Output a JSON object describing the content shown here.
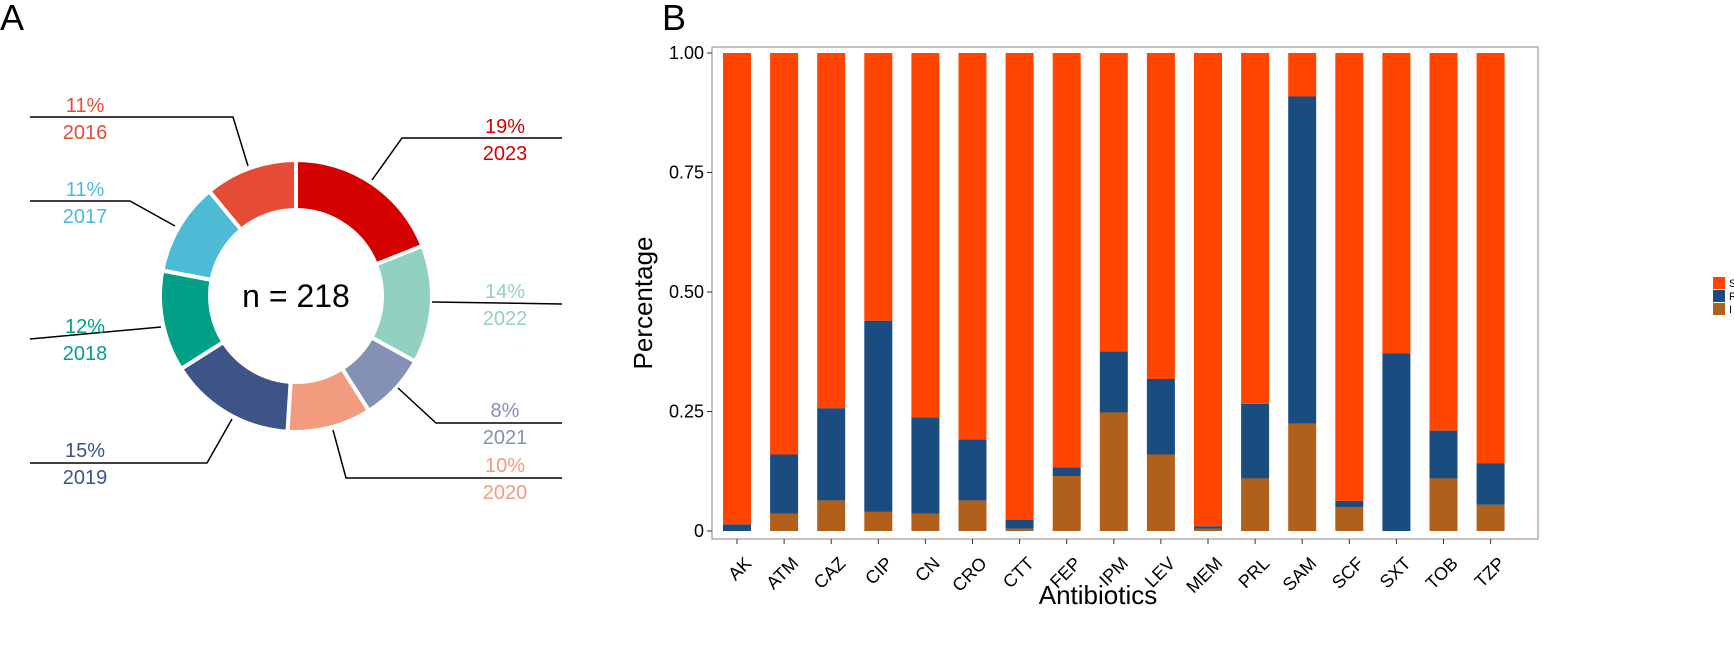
{
  "panels": {
    "a_label": "A",
    "b_label": "B"
  },
  "chart_data": [
    {
      "type": "pie",
      "subtype": "donut",
      "center_text": "n = 218",
      "slices": [
        {
          "year": "2023",
          "percent_label": "19%",
          "value": 19,
          "color": "#D40000"
        },
        {
          "year": "2022",
          "percent_label": "14%",
          "value": 14,
          "color": "#91D1C2"
        },
        {
          "year": "2021",
          "percent_label": "8%",
          "value": 8,
          "color": "#8491B4"
        },
        {
          "year": "2020",
          "percent_label": "10%",
          "value": 10,
          "color": "#F39B7F"
        },
        {
          "year": "2019",
          "percent_label": "15%",
          "value": 15,
          "color": "#3C5488"
        },
        {
          "year": "2018",
          "percent_label": "12%",
          "value": 12,
          "color": "#00A087"
        },
        {
          "year": "2017",
          "percent_label": "11%",
          "value": 11,
          "color": "#4DBBD5"
        },
        {
          "year": "2016",
          "percent_label": "11%",
          "value": 11,
          "color": "#E64B35"
        }
      ]
    },
    {
      "type": "bar",
      "stacked": true,
      "xlabel": "Antibiotics",
      "ylabel": "Percentage",
      "ylim": [
        0,
        1
      ],
      "yticks": [
        {
          "value": 0,
          "label": "0"
        },
        {
          "value": 0.25,
          "label": "0.25"
        },
        {
          "value": 0.5,
          "label": "0.50"
        },
        {
          "value": 0.75,
          "label": "0.75"
        },
        {
          "value": 1,
          "label": "1.00"
        }
      ],
      "categories": [
        "AK",
        "ATM",
        "CAZ",
        "CIP",
        "CN",
        "CRO",
        "CTT",
        "FEP",
        "IPM",
        "LEV",
        "MEM",
        "PRL",
        "SAM",
        "SCF",
        "SXT",
        "TOB",
        "TZP"
      ],
      "series": [
        {
          "name": "I",
          "color": "#B0601A",
          "values": [
            0.0,
            0.036,
            0.064,
            0.04,
            0.036,
            0.064,
            0.005,
            0.115,
            0.248,
            0.16,
            0.005,
            0.11,
            0.225,
            0.05,
            0.0,
            0.11,
            0.055
          ]
        },
        {
          "name": "R",
          "color": "#1A4C80",
          "values": [
            0.014,
            0.124,
            0.193,
            0.4,
            0.202,
            0.128,
            0.018,
            0.018,
            0.128,
            0.158,
            0.005,
            0.156,
            0.684,
            0.013,
            0.372,
            0.1,
            0.087
          ]
        },
        {
          "name": "S",
          "color": "#FF4500",
          "values": [
            0.986,
            0.84,
            0.743,
            0.56,
            0.762,
            0.808,
            0.977,
            0.867,
            0.624,
            0.682,
            0.99,
            0.734,
            0.091,
            0.937,
            0.628,
            0.79,
            0.858
          ]
        }
      ],
      "legend": {
        "placement": "right",
        "order": [
          "S",
          "R",
          "I"
        ]
      }
    }
  ]
}
